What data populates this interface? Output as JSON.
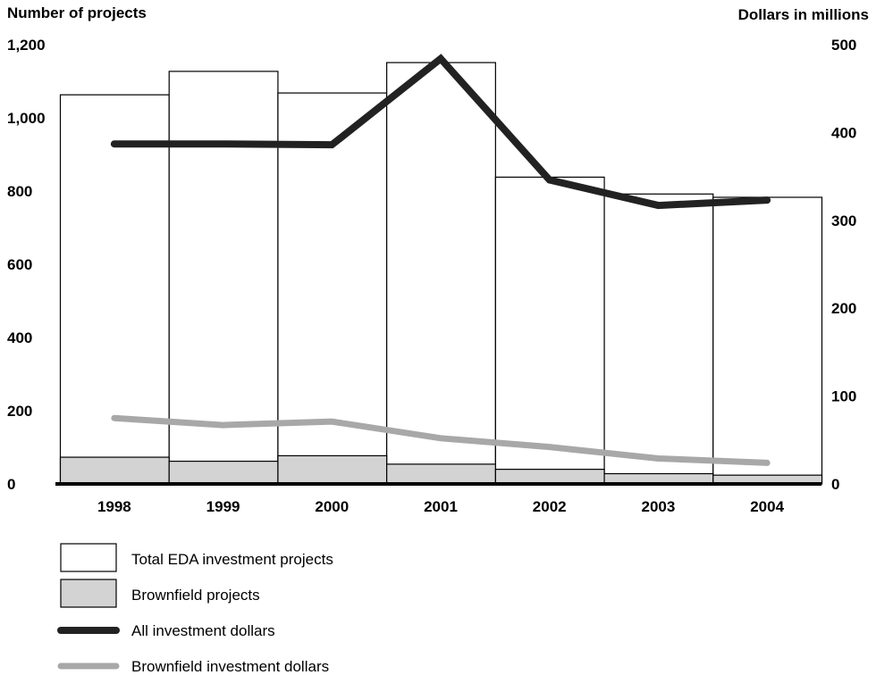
{
  "chart_data": {
    "type": "bar",
    "categories": [
      "1998",
      "1999",
      "2000",
      "2001",
      "2002",
      "2003",
      "2004"
    ],
    "left_axis": {
      "label": "Number of projects",
      "ylim": [
        0,
        1200
      ],
      "ticks": [
        "0",
        "200",
        "400",
        "600",
        "800",
        "1,000",
        "1,200"
      ]
    },
    "right_axis": {
      "label": "Dollars in millions",
      "ylim": [
        0,
        500
      ],
      "ticks": [
        "0",
        "100",
        "200",
        "300",
        "400",
        "500"
      ]
    },
    "series": [
      {
        "name": "Total EDA investment projects",
        "kind": "bar",
        "axis": "left",
        "color": "#ffffff",
        "values": [
          1063,
          1127,
          1068,
          1151,
          838,
          792,
          783
        ]
      },
      {
        "name": "Brownfield projects",
        "kind": "bar",
        "axis": "left",
        "color": "#d3d3d3",
        "values": [
          73,
          62,
          77,
          54,
          40,
          28,
          24
        ]
      },
      {
        "name": "All investment dollars",
        "kind": "line",
        "axis": "right",
        "color": "#222222",
        "values": [
          387,
          387,
          386,
          484,
          346,
          317,
          323
        ]
      },
      {
        "name": "Brownfield investment dollars",
        "kind": "line",
        "axis": "right",
        "color": "#a8a8a8",
        "values": [
          75,
          67,
          71,
          52,
          42,
          29,
          24
        ]
      }
    ],
    "grid": false,
    "legend_position": "bottom-left"
  }
}
